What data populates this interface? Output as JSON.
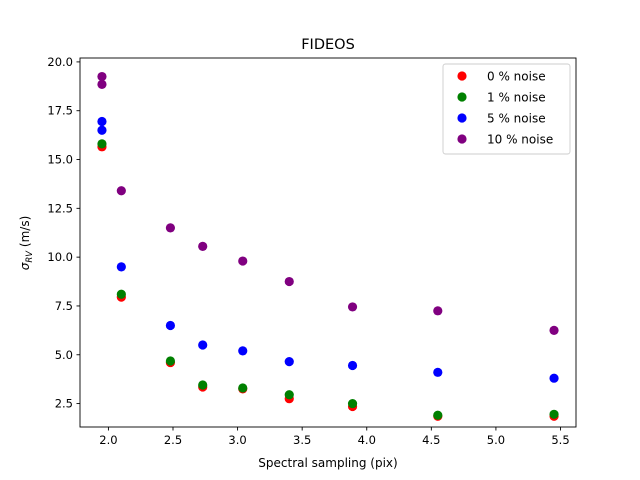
{
  "chart_data": {
    "type": "scatter",
    "title": "FIDEOS",
    "xlabel": "Spectral sampling (pix)",
    "ylabel_main": "σ",
    "ylabel_sub": "RV",
    "ylabel_unit": " (m/s)",
    "xlim": [
      1.78,
      5.62
    ],
    "ylim": [
      1.3,
      20.2
    ],
    "xticks": [
      2.0,
      2.5,
      3.0,
      3.5,
      4.0,
      4.5,
      5.0,
      5.5
    ],
    "yticks": [
      2.5,
      5.0,
      7.5,
      10.0,
      12.5,
      15.0,
      17.5,
      20.0
    ],
    "grid": false,
    "legend_position": "top-right",
    "series": [
      {
        "name": "0 % noise",
        "color": "#ff0000",
        "points": [
          [
            1.95,
            15.65
          ],
          [
            2.1,
            7.95
          ],
          [
            2.48,
            4.6
          ],
          [
            2.73,
            3.35
          ],
          [
            3.04,
            3.25
          ],
          [
            3.4,
            2.75
          ],
          [
            3.89,
            2.35
          ],
          [
            4.55,
            1.85
          ],
          [
            5.45,
            1.85
          ]
        ]
      },
      {
        "name": "1 % noise",
        "color": "#008000",
        "points": [
          [
            1.95,
            15.8
          ],
          [
            2.1,
            8.1
          ],
          [
            2.48,
            4.68
          ],
          [
            2.73,
            3.45
          ],
          [
            3.04,
            3.3
          ],
          [
            3.4,
            2.95
          ],
          [
            3.89,
            2.5
          ],
          [
            4.55,
            1.9
          ],
          [
            5.45,
            1.95
          ]
        ]
      },
      {
        "name": "5 % noise",
        "color": "#0000ff",
        "points": [
          [
            1.95,
            16.95
          ],
          [
            1.95,
            16.5
          ],
          [
            2.1,
            9.5
          ],
          [
            2.48,
            6.5
          ],
          [
            2.73,
            5.5
          ],
          [
            3.04,
            5.2
          ],
          [
            3.4,
            4.65
          ],
          [
            3.89,
            4.45
          ],
          [
            4.55,
            4.1
          ],
          [
            5.45,
            3.8
          ]
        ]
      },
      {
        "name": "10 % noise",
        "color": "#800080",
        "points": [
          [
            1.95,
            19.25
          ],
          [
            1.95,
            18.85
          ],
          [
            2.1,
            13.4
          ],
          [
            2.48,
            11.5
          ],
          [
            2.73,
            10.55
          ],
          [
            3.04,
            9.8
          ],
          [
            3.4,
            8.75
          ],
          [
            3.89,
            7.45
          ],
          [
            4.55,
            7.25
          ],
          [
            5.45,
            6.25
          ]
        ]
      }
    ]
  }
}
